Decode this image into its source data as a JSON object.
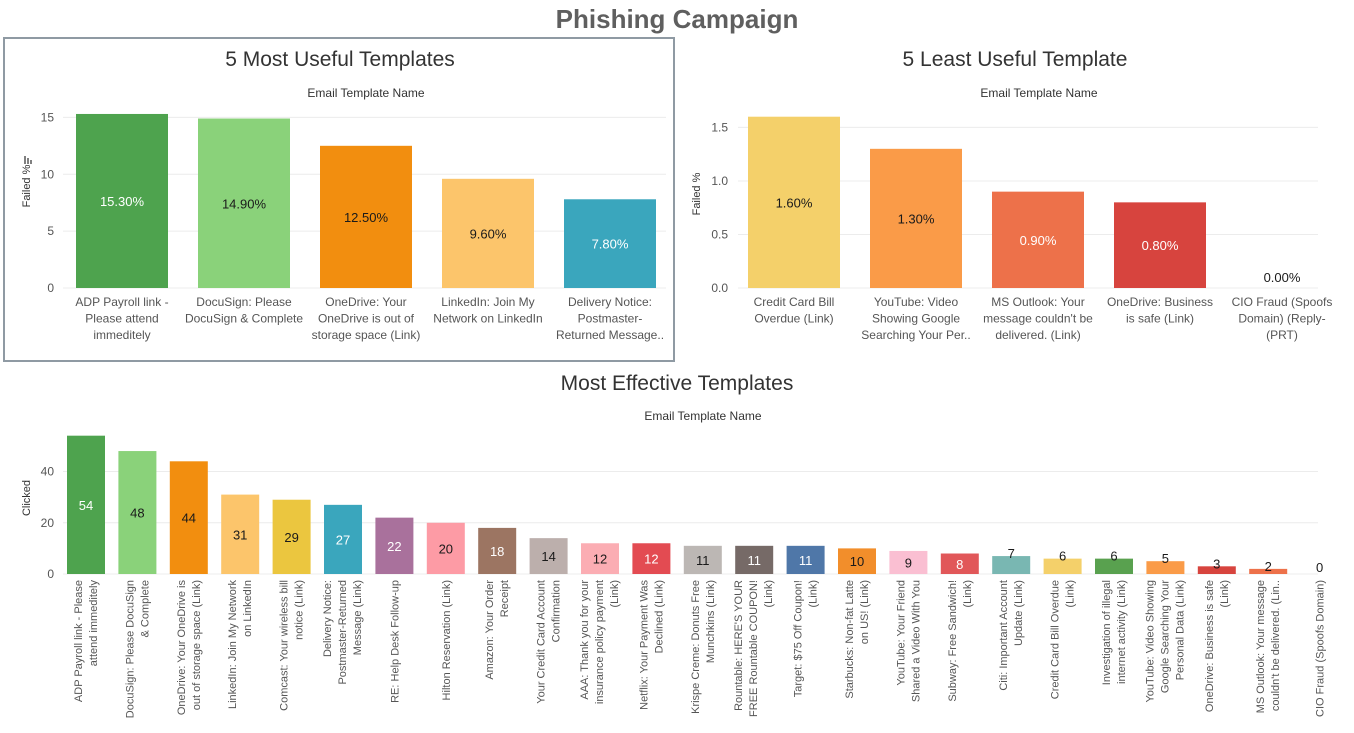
{
  "dashboard": {
    "title": "Phishing Campaign"
  },
  "icons": {
    "sort_icon": "sort-descending-icon"
  },
  "chart_data": [
    {
      "type": "bar",
      "title": "5 Most Useful Templates",
      "xlabel": "Email Template Name",
      "ylabel": "Failed %",
      "ylim": [
        0,
        16
      ],
      "yticks": [
        "0",
        "5",
        "10",
        "15"
      ],
      "grid": true,
      "categories": [
        [
          "ADP Payroll link -",
          "Please attend",
          "immeditely"
        ],
        [
          "DocuSign: Please",
          "DocuSign & Complete"
        ],
        [
          "OneDrive: Your",
          "OneDrive is out of",
          "storage space (Link)"
        ],
        [
          "LinkedIn: Join My",
          "Network on LinkedIn"
        ],
        [
          "Delivery Notice:",
          "Postmaster-",
          "Returned Message.."
        ]
      ],
      "values": [
        15.3,
        14.9,
        12.5,
        9.6,
        7.8
      ],
      "data_labels": [
        "15.30%",
        "14.90%",
        "12.50%",
        "9.60%",
        "7.80%"
      ],
      "colors": [
        "#4ea34e",
        "#8ad27a",
        "#f28e0f",
        "#fcc56b",
        "#3aa6bd"
      ]
    },
    {
      "type": "bar",
      "title": "5 Least  Useful Template",
      "xlabel": "Email Template Name",
      "ylabel": "Failed %",
      "ylim": [
        0,
        1.7
      ],
      "yticks": [
        "0.0",
        "0.5",
        "1.0",
        "1.5"
      ],
      "grid": true,
      "categories": [
        [
          "Credit Card Bill",
          "Overdue (Link)"
        ],
        [
          "YouTube: Video",
          "Showing Google",
          "Searching Your Per.."
        ],
        [
          "MS Outlook: Your",
          "message couldn't be",
          "delivered. (Link)"
        ],
        [
          "OneDrive: Business",
          "is safe (Link)"
        ],
        [
          "CIO Fraud (Spoofs",
          "Domain) (Reply-",
          "(PRT)"
        ]
      ],
      "values": [
        1.6,
        1.3,
        0.9,
        0.8,
        0.0
      ],
      "data_labels": [
        "1.60%",
        "1.30%",
        "0.90%",
        "0.80%",
        "0.00%"
      ],
      "colors": [
        "#f4d06a",
        "#fa9b48",
        "#ed714a",
        "#d7443e",
        "#cccccc"
      ]
    },
    {
      "type": "bar",
      "title": "Most Effective Templates",
      "xlabel": "Email Template Name",
      "ylabel": "Clicked",
      "ylim": [
        0,
        57
      ],
      "yticks": [
        "0",
        "20",
        "40"
      ],
      "grid": true,
      "categories": [
        [
          "ADP Payroll link - Please",
          "attend immeditely"
        ],
        [
          "DocuSign: Please DocuSign",
          "& Complete"
        ],
        [
          "OneDrive: Your OneDrive is",
          "out of storage space (Link)"
        ],
        [
          "LinkedIn: Join My Network",
          "on LinkedIn"
        ],
        [
          "Comcast: Your wireless bill",
          "notice (Link)"
        ],
        [
          "Delivery Notice:",
          "Postmaster-Returned",
          "Message (Link)"
        ],
        [
          "RE: Help Desk Follow-up"
        ],
        [
          "Hilton Reservation (Link)"
        ],
        [
          "Amazon: Your Order",
          "Receipt"
        ],
        [
          "Your Credit Card Account",
          "Confirmation"
        ],
        [
          "AAA: Thank you for your",
          "insurance policy payment",
          "(Link)"
        ],
        [
          "Netflix: Your Payment Was",
          "Declined (Link)"
        ],
        [
          "Krispe Creme: Donuts Free",
          "Munchkins (Link)"
        ],
        [
          "Rountable: HERE'S YOUR",
          "FREE Rountable COUPON!",
          "(Link)"
        ],
        [
          "Target: $75 Off Coupon!",
          "(Link)"
        ],
        [
          "Starbucks: Non-fat Latte",
          "on US! (Link)"
        ],
        [
          "YouTube: Your Friend",
          "Shared a Video With You"
        ],
        [
          "Subway: Free Sandwich!",
          "(Link)"
        ],
        [
          "Citi: Important Account",
          "Update (Link)"
        ],
        [
          "Credit Card Bill Overdue",
          "(Link)"
        ],
        [
          "Investigation of illegal",
          "internet activity (Link)"
        ],
        [
          "YouTube: Video Showing",
          "Google Searching Your",
          "Personal Data (Link)"
        ],
        [
          "OneDrive: Business is safe",
          "(Link)"
        ],
        [
          "MS Outlook: Your message",
          "couldn't be delivered. (Lin.."
        ],
        [
          "CIO Fraud (Spoofs Domain)"
        ]
      ],
      "values": [
        54,
        48,
        44,
        31,
        29,
        27,
        22,
        20,
        18,
        14,
        12,
        12,
        11,
        11,
        11,
        10,
        9,
        8,
        7,
        6,
        6,
        5,
        3,
        2,
        0
      ],
      "data_labels": [
        "54",
        "48",
        "44",
        "31",
        "29",
        "27",
        "22",
        "20",
        "18",
        "14",
        "12",
        "12",
        "11",
        "11",
        "11",
        "10",
        "9",
        "8",
        "7",
        "6",
        "6",
        "5",
        "3",
        "2",
        "0"
      ],
      "colors": [
        "#4ea34e",
        "#8ad27a",
        "#f28e0f",
        "#fcc56b",
        "#ebc63f",
        "#3aa6bd",
        "#a9719c",
        "#fd9ba5",
        "#9c7562",
        "#bcafac",
        "#fbadb3",
        "#e34b52",
        "#bcb7b4",
        "#766a67",
        "#4f77a8",
        "#f28e2b",
        "#fabfd2",
        "#e15759",
        "#79b7b2",
        "#f4d06a",
        "#59a14f",
        "#fa9b48",
        "#d7443e",
        "#ed714a",
        "#cccccc"
      ]
    }
  ]
}
